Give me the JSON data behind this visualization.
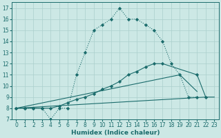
{
  "xlabel": "Humidex (Indice chaleur)",
  "xlim": [
    -0.5,
    23.5
  ],
  "ylim": [
    7,
    17.5
  ],
  "yticks": [
    7,
    8,
    9,
    10,
    11,
    12,
    13,
    14,
    15,
    16,
    17
  ],
  "xticks": [
    0,
    1,
    2,
    3,
    4,
    5,
    6,
    7,
    8,
    9,
    10,
    11,
    12,
    13,
    14,
    15,
    16,
    17,
    18,
    19,
    20,
    21,
    22,
    23
  ],
  "bg_color": "#cce8e5",
  "grid_color": "#aacfcc",
  "line_color": "#1a6b6b",
  "series1_x": [
    0,
    1,
    2,
    3,
    4,
    5,
    6,
    7,
    8,
    9,
    10,
    11,
    12,
    13,
    14,
    15,
    16,
    17,
    18,
    19,
    20,
    21
  ],
  "series1_y": [
    8,
    8,
    8,
    8,
    7,
    8,
    8,
    11,
    13,
    15,
    15.5,
    16,
    17,
    16,
    16,
    15.5,
    15,
    14,
    12,
    11,
    9,
    9
  ],
  "series2_x": [
    0,
    1,
    2,
    3,
    4,
    5,
    6,
    7,
    8,
    9,
    10,
    11,
    12,
    13,
    14,
    15,
    16,
    17,
    21,
    22
  ],
  "series2_y": [
    8,
    8,
    8,
    8,
    8,
    8.2,
    8.5,
    8.8,
    9,
    9.3,
    9.7,
    10,
    10.4,
    11,
    11.3,
    11.7,
    12,
    12,
    11,
    9
  ],
  "series3_x": [
    0,
    22,
    23
  ],
  "series3_y": [
    8,
    9,
    9
  ],
  "series4_x": [
    0,
    19,
    21
  ],
  "series4_y": [
    8,
    11,
    9.5
  ]
}
